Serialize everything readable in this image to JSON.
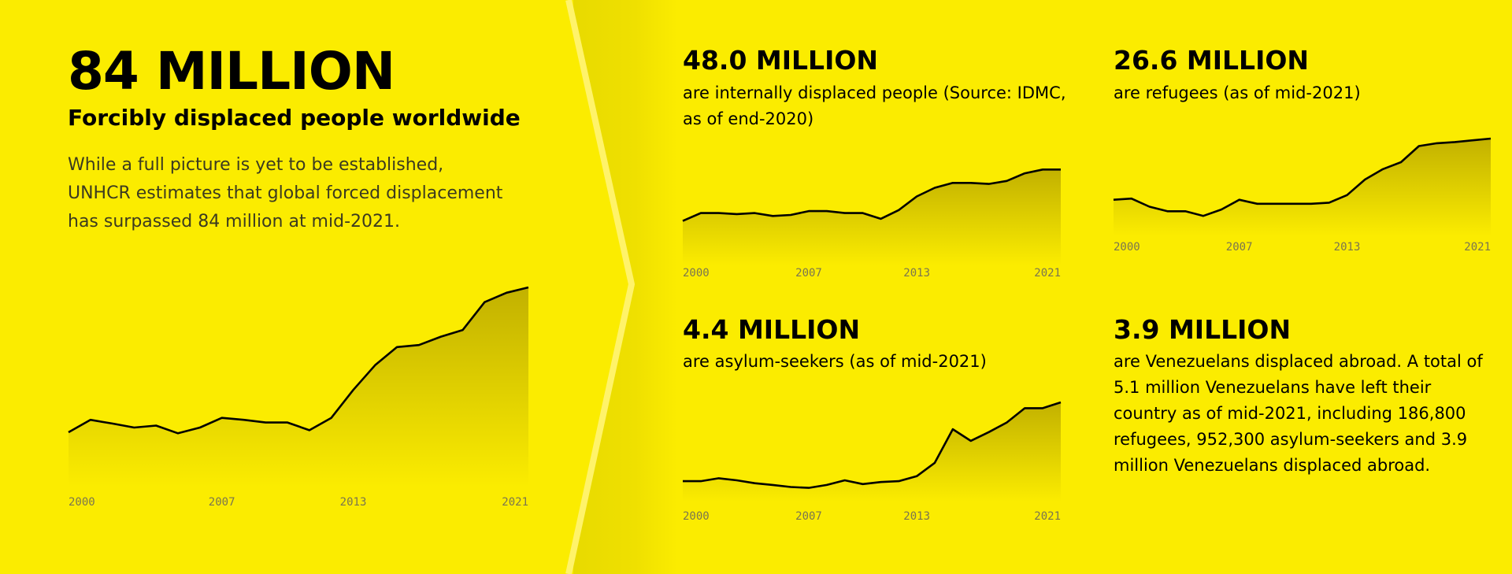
{
  "chart_data": [
    {
      "type": "area",
      "title": "84 MILLION",
      "subtitle": "Forcibly displaced people worldwide",
      "description": "While a full picture is yet to be established, UNHCR estimates that global forced displacement has surpassed 84 million at mid-2021.",
      "x": [
        2000,
        2001,
        2002,
        2003,
        2004,
        2005,
        2006,
        2007,
        2008,
        2009,
        2010,
        2011,
        2012,
        2013,
        2014,
        2015,
        2016,
        2017,
        2018,
        2019,
        2020,
        2021
      ],
      "values": [
        40.8,
        44.5,
        43.4,
        42.2,
        42.8,
        40.5,
        42.2,
        45.1,
        44.5,
        43.7,
        43.7,
        41.4,
        45.1,
        53.4,
        60.8,
        66.2,
        66.8,
        69.3,
        71.3,
        79.6,
        82.4,
        84
      ],
      "xlim": [
        2000,
        2021
      ],
      "xticks": [
        2000,
        2007,
        2013,
        2021
      ],
      "ylim": [
        26,
        84
      ],
      "color": "#000000"
    },
    {
      "type": "area",
      "title": "48.0 MILLION",
      "description": "are internally displaced people (Source: IDMC, as of end-2020)",
      "x": [
        2000,
        2001,
        2002,
        2003,
        2004,
        2005,
        2006,
        2007,
        2008,
        2009,
        2010,
        2011,
        2012,
        2013,
        2014,
        2015,
        2016,
        2017,
        2018,
        2019,
        2020,
        2021
      ],
      "values": [
        23.7,
        27.4,
        27.4,
        26.9,
        27.4,
        26.0,
        26.5,
        28.3,
        28.3,
        27.4,
        27.4,
        24.7,
        28.8,
        35.2,
        39.3,
        41.6,
        41.6,
        41.1,
        42.5,
        46.1,
        47.9,
        47.9
      ],
      "xlim": [
        2000,
        2021
      ],
      "xticks": [
        2000,
        2007,
        2013,
        2021
      ],
      "ylim": [
        5,
        48
      ],
      "color": "#000000"
    },
    {
      "type": "area",
      "title": "26.6 MILLION",
      "description": "are refugees (as of mid-2021)",
      "x": [
        2000,
        2001,
        2002,
        2003,
        2004,
        2005,
        2006,
        2007,
        2008,
        2009,
        2010,
        2011,
        2012,
        2013,
        2014,
        2015,
        2016,
        2017,
        2018,
        2019,
        2020,
        2021
      ],
      "values": [
        16,
        16.2,
        14.8,
        14,
        14,
        13.2,
        14.3,
        16,
        15.3,
        15.3,
        15.3,
        15.3,
        15.5,
        16.8,
        19.5,
        21.3,
        22.5,
        25.3,
        25.8,
        26,
        26.3,
        26.6
      ],
      "xlim": [
        2000,
        2021
      ],
      "xticks": [
        2000,
        2007,
        2013,
        2021
      ],
      "ylim": [
        10.5,
        26.6
      ],
      "color": "#000000"
    },
    {
      "type": "area",
      "title": "4.4 MILLION",
      "description": "are asylum-seekers (as of mid-2021)",
      "x": [
        2000,
        2001,
        2002,
        2003,
        2004,
        2005,
        2006,
        2007,
        2008,
        2009,
        2010,
        2011,
        2012,
        2013,
        2014,
        2015,
        2016,
        2017,
        2018,
        2019,
        2020,
        2021
      ],
      "values": [
        0.9,
        0.9,
        1.03,
        0.94,
        0.81,
        0.73,
        0.64,
        0.6,
        0.73,
        0.94,
        0.77,
        0.86,
        0.9,
        1.12,
        1.72,
        3.22,
        2.7,
        3.09,
        3.52,
        4.16,
        4.16,
        4.42
      ],
      "xlim": [
        2000,
        2021
      ],
      "xticks": [
        2000,
        2007,
        2013,
        2021
      ],
      "ylim": [
        0.2,
        4.42
      ],
      "color": "#000000"
    }
  ],
  "card": {
    "title": "3.9 MILLION",
    "text": "are Venezuelans displaced abroad. A total of 5.1 million Venezuelans have left their country as of mid-2021, including 186,800 refugees, 952,300 asylum-seekers and 3.9 million Venezuelans displaced abroad."
  }
}
